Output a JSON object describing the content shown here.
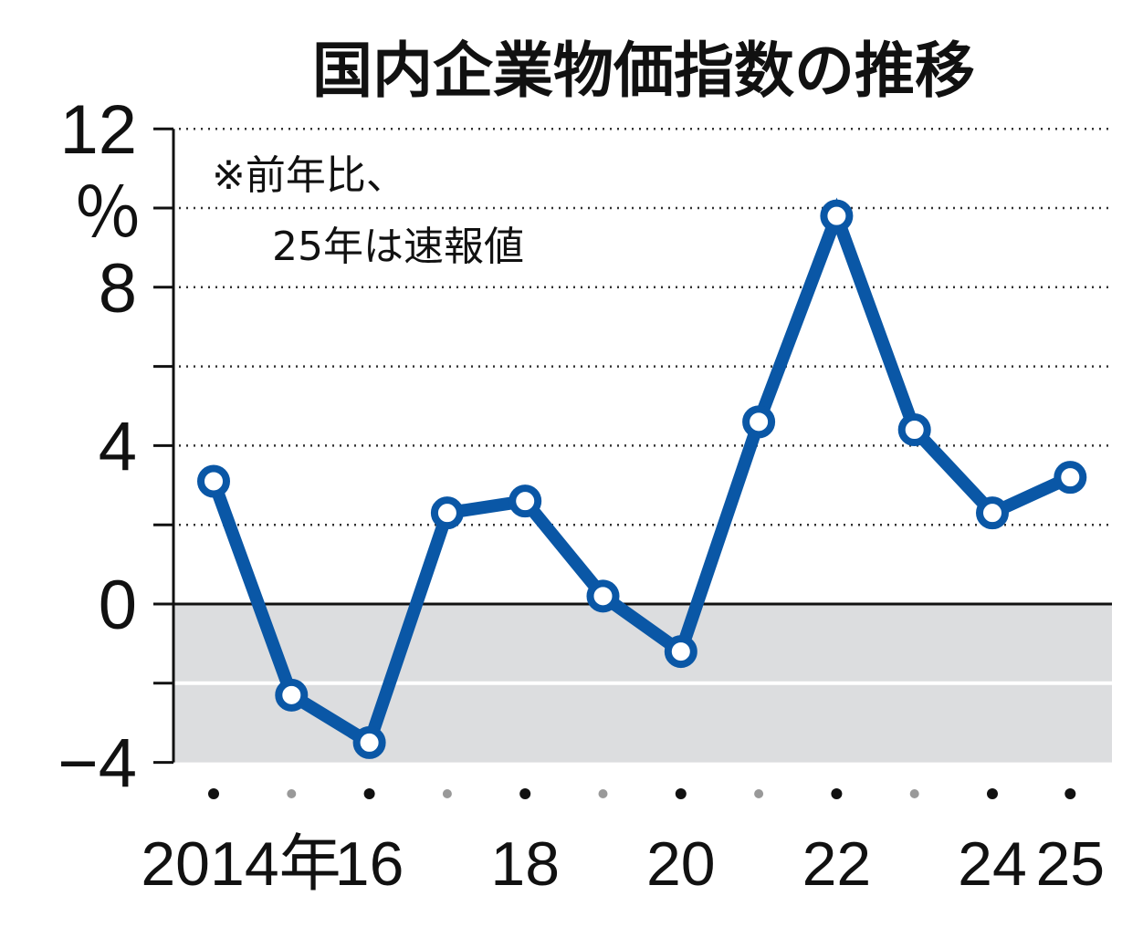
{
  "chart_data": {
    "type": "line",
    "title": "国内企業物価指数の推移",
    "annotation": [
      "※前年比、",
      "25年は速報値"
    ],
    "ylabel": "％",
    "ylim": [
      -4,
      12
    ],
    "yticks": [
      12,
      8,
      4,
      0,
      -4
    ],
    "ytick_labels": [
      "12",
      "8",
      "4",
      "0",
      "−4"
    ],
    "grid": "dotted",
    "negative_region_shaded": true,
    "x": [
      2014,
      2015,
      2016,
      2017,
      2018,
      2019,
      2020,
      2021,
      2022,
      2023,
      2024,
      2025
    ],
    "x_labels": {
      "2014": "2014年",
      "2016": "16",
      "2018": "18",
      "2020": "20",
      "2022": "22",
      "2024": "24",
      "2025": "25"
    },
    "values": [
      3.1,
      -2.3,
      -3.5,
      2.3,
      2.6,
      0.2,
      -1.2,
      4.6,
      9.8,
      4.4,
      2.3,
      3.2
    ],
    "colors": {
      "line": "#0a57a6",
      "shade": "#dcdddf"
    }
  }
}
